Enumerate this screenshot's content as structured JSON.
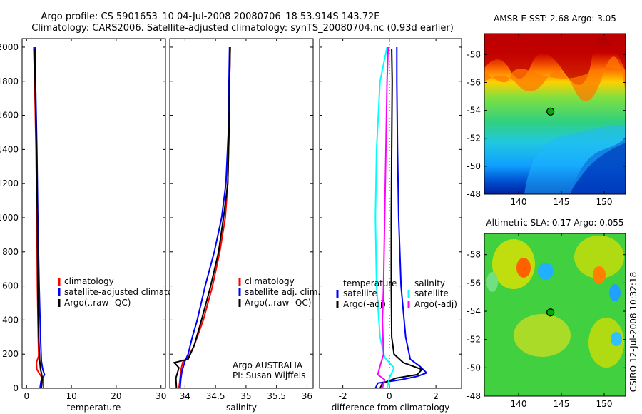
{
  "figure": {
    "title_line1": "Argo profile: CS 5901653_10 04-Jul-2008 20080706_18 53.914S 143.72E",
    "title_line2": "Climatology: CARS2006. Satellite-adjusted climatology: synTS_20080704.nc (0.93d earlier)",
    "side_label": "CSIRO 12-Jul-2008 10:32:18"
  },
  "colors": {
    "climatology": "#ff0000",
    "satellite": "#0000ff",
    "argo": "#000000",
    "sat_diff": "#00ffff",
    "argo_adj": "#ff00ff",
    "dotted": "#000000"
  },
  "chart_data": [
    {
      "type": "line",
      "id": "temperature",
      "xlabel": "temperature",
      "ylabel": "",
      "xlim": [
        -1,
        31
      ],
      "ylim": [
        2050,
        0
      ],
      "xticks": [
        0,
        10,
        20,
        30
      ],
      "yticks": [
        0,
        200,
        400,
        600,
        800,
        1000,
        1200,
        1400,
        1600,
        1800,
        2000
      ],
      "legend": {
        "position": "center-right",
        "entries": [
          {
            "label": "climatology",
            "color": "#ff0000"
          },
          {
            "label": "satellite-adjusted climatology",
            "color": "#0000ff"
          },
          {
            "label": "Argo(..raw -QC)",
            "color": "#000000"
          }
        ]
      },
      "series": [
        {
          "name": "climatology",
          "color": "#ff0000",
          "points": [
            [
              3.8,
              0
            ],
            [
              3.7,
              50
            ],
            [
              3.0,
              80
            ],
            [
              2.3,
              110
            ],
            [
              2.2,
              150
            ],
            [
              2.7,
              190
            ],
            [
              2.6,
              300
            ],
            [
              2.4,
              600
            ],
            [
              2.3,
              1000
            ],
            [
              2.1,
              1400
            ],
            [
              1.8,
              1800
            ],
            [
              1.6,
              2000
            ]
          ]
        },
        {
          "name": "satellite-adjusted climatology",
          "color": "#0000ff",
          "points": [
            [
              3.0,
              0
            ],
            [
              3.2,
              40
            ],
            [
              4.0,
              80
            ],
            [
              3.6,
              110
            ],
            [
              3.3,
              160
            ],
            [
              3.1,
              300
            ],
            [
              2.8,
              600
            ],
            [
              2.5,
              1000
            ],
            [
              2.3,
              1400
            ],
            [
              2.0,
              1800
            ],
            [
              1.9,
              2000
            ]
          ]
        },
        {
          "name": "Argo(..raw -QC)",
          "color": "#000000",
          "points": [
            [
              3.3,
              0
            ],
            [
              3.5,
              60
            ],
            [
              3.3,
              90
            ],
            [
              3.1,
              110
            ],
            [
              2.9,
              170
            ],
            [
              2.7,
              300
            ],
            [
              2.5,
              600
            ],
            [
              2.4,
              1000
            ],
            [
              2.2,
              1400
            ],
            [
              1.9,
              1800
            ],
            [
              1.8,
              1990
            ]
          ]
        }
      ]
    },
    {
      "type": "line",
      "id": "salinity",
      "xlabel": "salinity",
      "xlim": [
        33.75,
        36.1
      ],
      "ylim": [
        2050,
        0
      ],
      "xticks": [
        34,
        34.5,
        35,
        35.5,
        36
      ],
      "legend": {
        "position": "center-right",
        "entries": [
          {
            "label": "climatology",
            "color": "#ff0000"
          },
          {
            "label": "satellite adj. clim.",
            "color": "#0000ff"
          },
          {
            "label": "Argo(..raw -QC)",
            "color": "#000000"
          }
        ]
      },
      "annotation": [
        "Argo AUSTRALIA",
        "PI: Susan Wijffels"
      ],
      "series": [
        {
          "name": "climatology",
          "color": "#ff0000",
          "points": [
            [
              33.9,
              0
            ],
            [
              33.92,
              60
            ],
            [
              33.93,
              100
            ],
            [
              33.96,
              150
            ],
            [
              34.05,
              180
            ],
            [
              34.15,
              250
            ],
            [
              34.3,
              400
            ],
            [
              34.45,
              600
            ],
            [
              34.57,
              800
            ],
            [
              34.66,
              1000
            ],
            [
              34.7,
              1200
            ],
            [
              34.72,
              1500
            ],
            [
              34.73,
              1800
            ],
            [
              34.74,
              2000
            ]
          ]
        },
        {
          "name": "satellite adj. clim.",
          "color": "#0000ff",
          "points": [
            [
              33.92,
              0
            ],
            [
              33.93,
              50
            ],
            [
              33.95,
              100
            ],
            [
              34.0,
              160
            ],
            [
              34.05,
              200
            ],
            [
              34.12,
              300
            ],
            [
              34.2,
              400
            ],
            [
              34.33,
              600
            ],
            [
              34.48,
              800
            ],
            [
              34.6,
              1000
            ],
            [
              34.67,
              1200
            ],
            [
              34.71,
              1500
            ],
            [
              34.72,
              1800
            ],
            [
              34.73,
              2000
            ]
          ]
        },
        {
          "name": "Argo(..raw -QC)",
          "color": "#000000",
          "points": [
            [
              33.86,
              0
            ],
            [
              33.85,
              60
            ],
            [
              33.9,
              120
            ],
            [
              33.85,
              140
            ],
            [
              33.82,
              150
            ],
            [
              34.05,
              170
            ],
            [
              34.15,
              250
            ],
            [
              34.27,
              400
            ],
            [
              34.42,
              600
            ],
            [
              34.55,
              800
            ],
            [
              34.63,
              1000
            ],
            [
              34.7,
              1200
            ],
            [
              34.72,
              1500
            ],
            [
              34.73,
              1800
            ],
            [
              34.74,
              2000
            ]
          ]
        }
      ]
    },
    {
      "type": "line",
      "id": "difference",
      "xlabel": "difference from climatology",
      "xlim": [
        -3,
        3.1
      ],
      "ylim": [
        2050,
        0
      ],
      "xticks": [
        -2,
        0,
        2
      ],
      "legend": {
        "position": "center",
        "entries": [
          {
            "group": "temperature",
            "label": "satellite",
            "color": "#0000ff"
          },
          {
            "group": "temperature",
            "label": "Argo(-adj)",
            "color": "#000000"
          },
          {
            "group": "salinity",
            "label": "satellite",
            "color": "#00ffff"
          },
          {
            "group": "salinity",
            "label": "Argo(-adj)",
            "color": "#ff00ff"
          }
        ]
      },
      "series": [
        {
          "name": "temperature satellite",
          "color": "#0000ff",
          "points": [
            [
              -0.6,
              0
            ],
            [
              -0.5,
              30
            ],
            [
              0.5,
              50
            ],
            [
              1.2,
              70
            ],
            [
              1.6,
              90
            ],
            [
              1.3,
              130
            ],
            [
              0.9,
              170
            ],
            [
              0.7,
              300
            ],
            [
              0.5,
              600
            ],
            [
              0.4,
              1000
            ],
            [
              0.35,
              1400
            ],
            [
              0.32,
              1800
            ],
            [
              0.32,
              2000
            ]
          ]
        },
        {
          "name": "temperature Argo(-adj)",
          "color": "#000000",
          "points": [
            [
              -0.4,
              0
            ],
            [
              -0.3,
              30
            ],
            [
              0.3,
              60
            ],
            [
              1.2,
              80
            ],
            [
              1.4,
              110
            ],
            [
              0.6,
              150
            ],
            [
              0.2,
              200
            ],
            [
              0.1,
              300
            ],
            [
              0.08,
              600
            ],
            [
              0.08,
              1000
            ],
            [
              0.1,
              1400
            ],
            [
              0.12,
              1800
            ],
            [
              0.1,
              1990
            ]
          ]
        },
        {
          "name": "salinity satellite",
          "color": "#00ffff",
          "points": [
            [
              -0.1,
              0
            ],
            [
              0.0,
              60
            ],
            [
              0.2,
              120
            ],
            [
              -0.2,
              180
            ],
            [
              -0.4,
              300
            ],
            [
              -0.55,
              600
            ],
            [
              -0.6,
              1000
            ],
            [
              -0.55,
              1400
            ],
            [
              -0.4,
              1800
            ],
            [
              -0.1,
              2000
            ]
          ]
        },
        {
          "name": "salinity Argo(-adj)",
          "color": "#ff00ff",
          "points": [
            [
              -0.3,
              0
            ],
            [
              -0.2,
              50
            ],
            [
              -0.5,
              80
            ],
            [
              -0.4,
              130
            ],
            [
              -0.25,
              200
            ],
            [
              -0.3,
              400
            ],
            [
              -0.25,
              600
            ],
            [
              -0.2,
              1000
            ],
            [
              -0.15,
              1400
            ],
            [
              -0.1,
              1800
            ],
            [
              -0.05,
              2000
            ]
          ]
        }
      ],
      "reference_line": 0
    },
    {
      "type": "heatmap",
      "id": "sst",
      "title": "AMSR-E SST: 2.68 Argo: 3.05",
      "xlim": [
        136,
        152.5
      ],
      "ylim": [
        -59.5,
        -48
      ],
      "xticks": [
        140,
        145,
        150
      ],
      "yticks": [
        -48,
        -50,
        -52,
        -54,
        -56,
        -58
      ],
      "marker": {
        "lon": 143.72,
        "lat": -53.914,
        "color": "#00b000"
      }
    },
    {
      "type": "heatmap",
      "id": "sla",
      "title": "Altimetric SLA: 0.17 Argo: 0.055",
      "xlim": [
        136,
        152.5
      ],
      "ylim": [
        -59.5,
        -48
      ],
      "xticks": [
        140,
        145,
        150
      ],
      "yticks": [
        -48,
        -50,
        -52,
        -54,
        -56,
        -58
      ],
      "marker": {
        "lon": 143.72,
        "lat": -53.914,
        "color": "#00b000"
      }
    }
  ]
}
